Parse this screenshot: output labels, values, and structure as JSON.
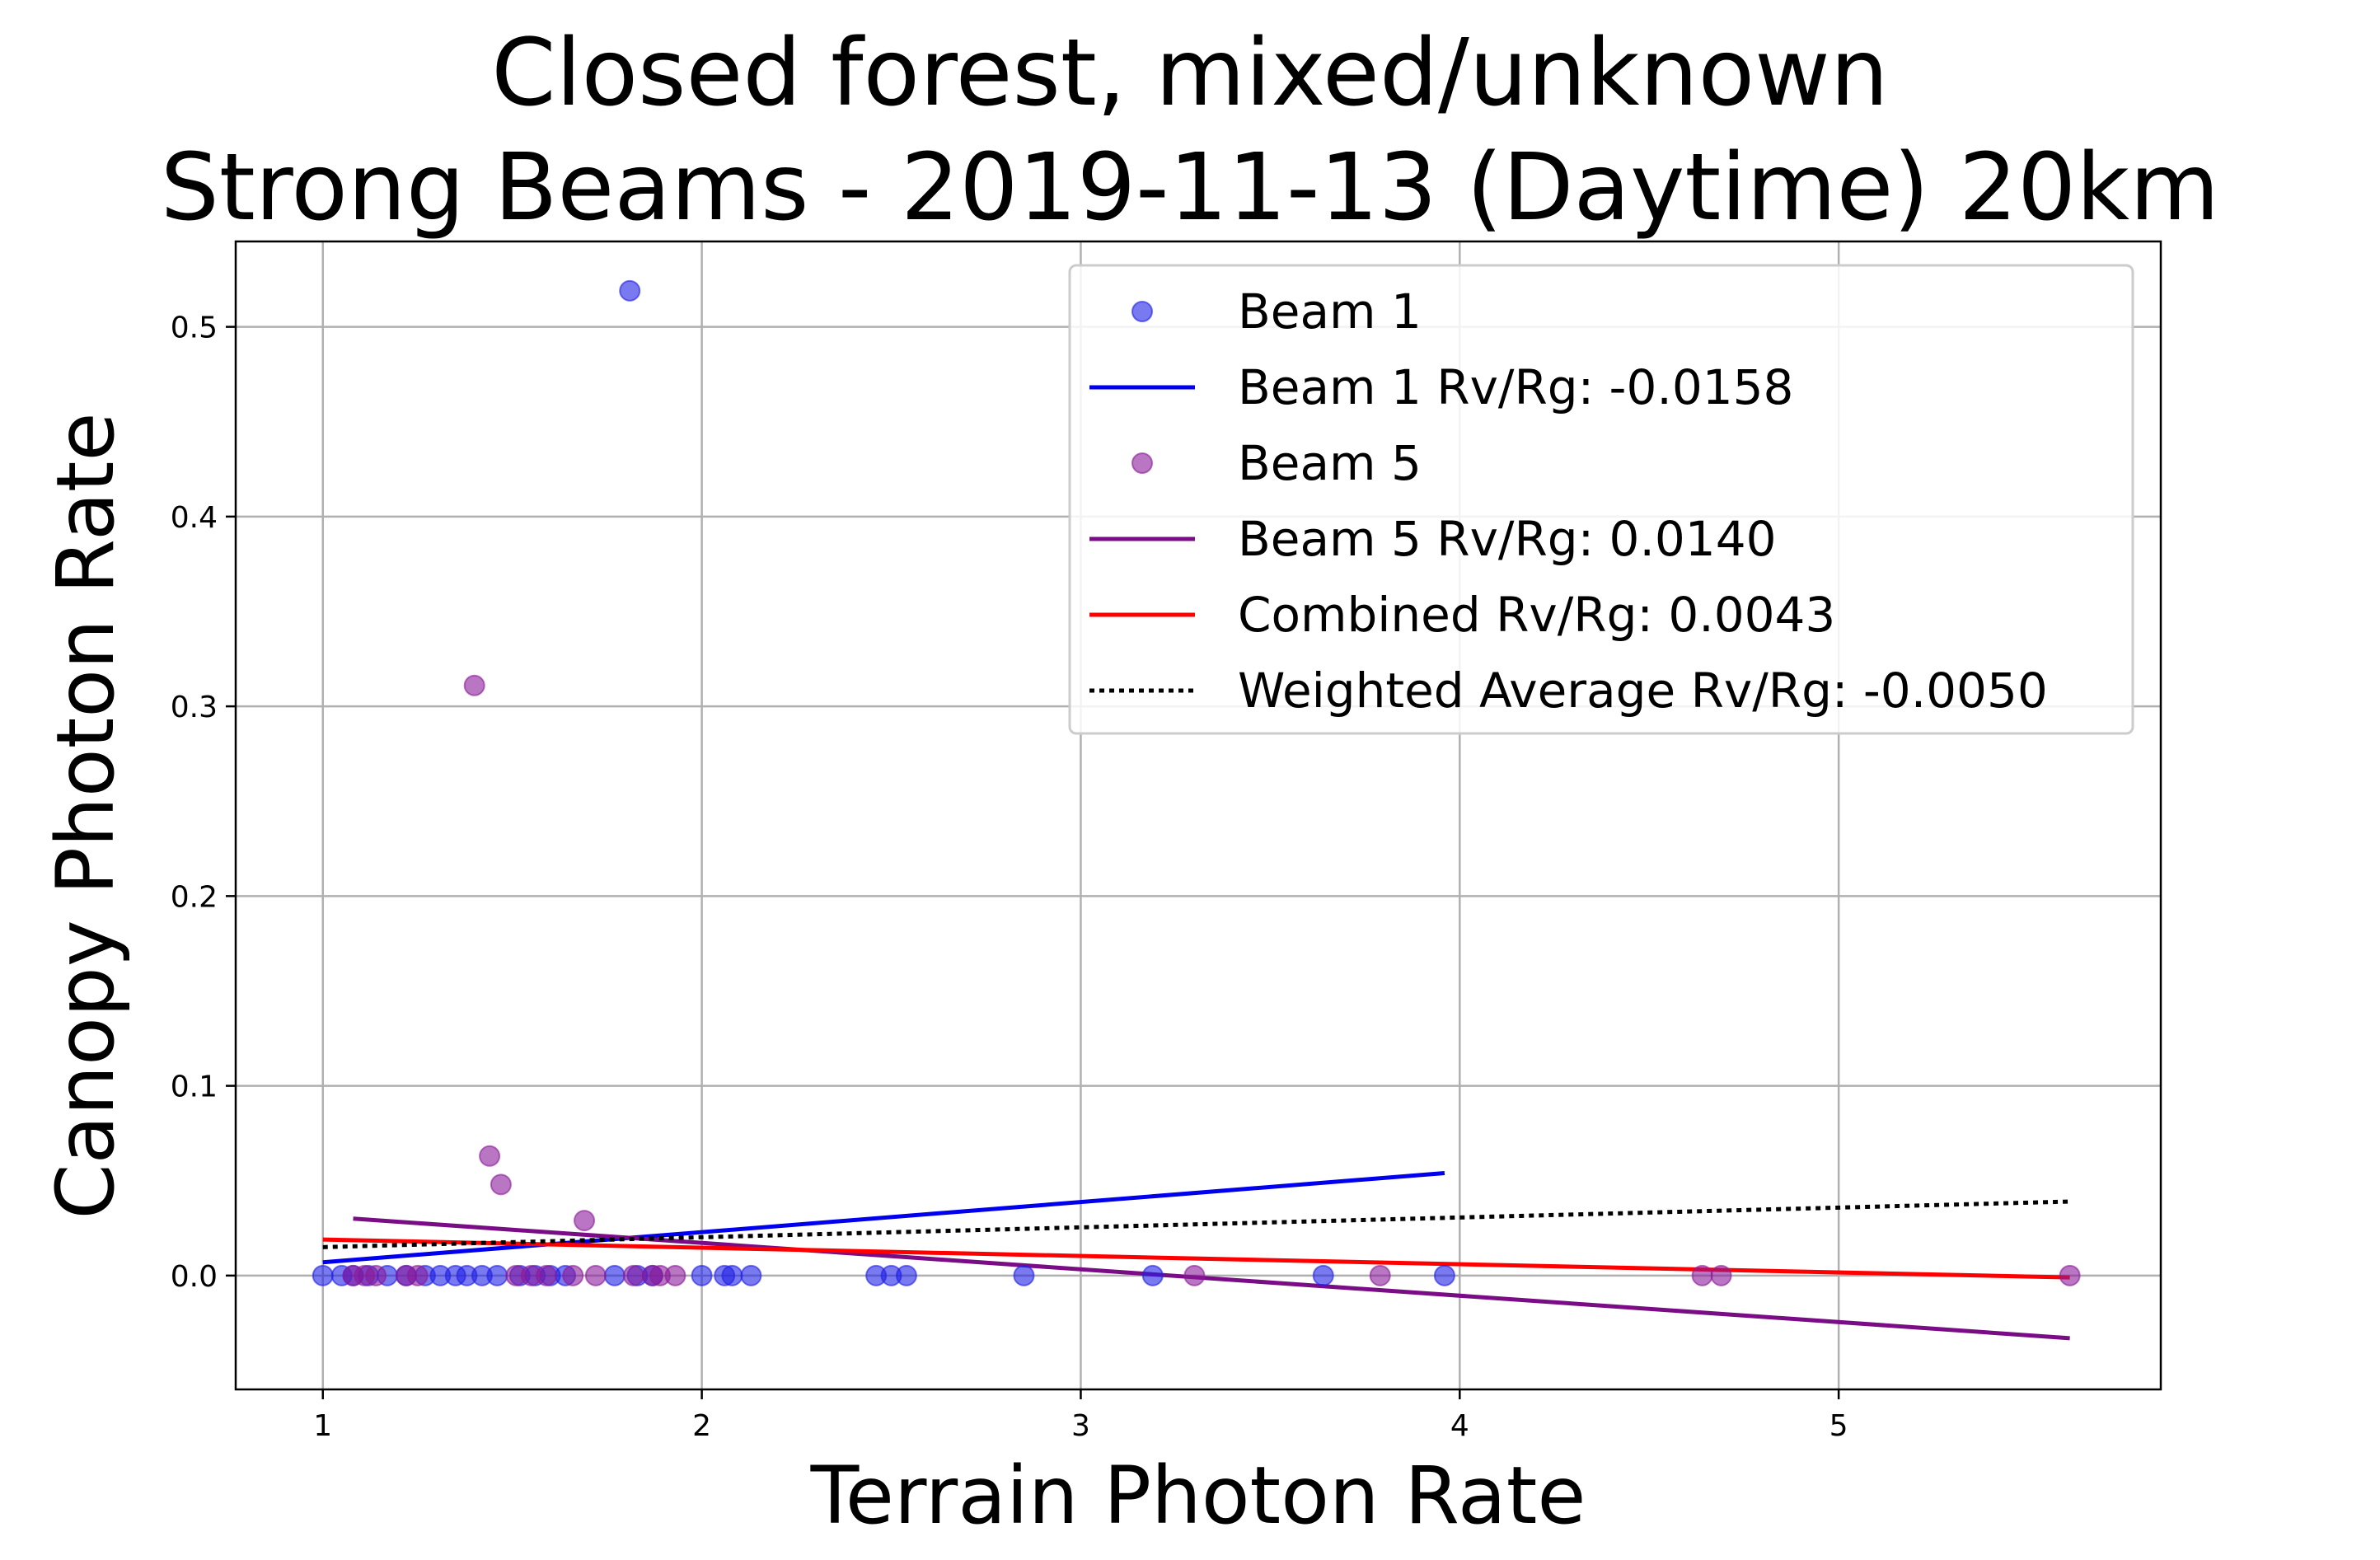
{
  "chart_data": {
    "type": "scatter",
    "title_lines": [
      "Closed forest, mixed/unknown",
      "Strong Beams - 2019-11-13 (Daytime) 20km"
    ],
    "xlabel": "Terrain Photon Rate",
    "ylabel": "Canopy Photon Rate",
    "xlim": [
      0.77,
      5.85
    ],
    "ylim": [
      -0.06,
      0.545
    ],
    "x_ticks": [
      1,
      2,
      3,
      4,
      5
    ],
    "x_tick_labels": [
      "1",
      "2",
      "3",
      "4",
      "5"
    ],
    "y_ticks": [
      0.0,
      0.1,
      0.2,
      0.3,
      0.4,
      0.5
    ],
    "y_tick_labels": [
      "0.0",
      "0.1",
      "0.2",
      "0.3",
      "0.4",
      "0.5"
    ],
    "grid": true,
    "legend_position": "top-right",
    "series": [
      {
        "name": "Beam 1",
        "kind": "scatter",
        "color": "#1f1fe6",
        "points": [
          [
            1.0,
            0.0
          ],
          [
            1.05,
            0.0
          ],
          [
            1.08,
            0.0
          ],
          [
            1.12,
            0.0
          ],
          [
            1.17,
            0.0
          ],
          [
            1.22,
            0.0
          ],
          [
            1.27,
            0.0
          ],
          [
            1.31,
            0.0
          ],
          [
            1.35,
            0.0
          ],
          [
            1.38,
            0.0
          ],
          [
            1.42,
            0.0
          ],
          [
            1.46,
            0.0
          ],
          [
            1.52,
            0.0
          ],
          [
            1.56,
            0.0
          ],
          [
            1.6,
            0.0
          ],
          [
            1.64,
            0.0
          ],
          [
            1.77,
            0.0
          ],
          [
            1.81,
            0.519
          ],
          [
            1.83,
            0.0
          ],
          [
            1.87,
            0.0
          ],
          [
            2.0,
            0.0
          ],
          [
            2.06,
            0.0
          ],
          [
            2.08,
            0.0
          ],
          [
            2.13,
            0.0
          ],
          [
            2.46,
            0.0
          ],
          [
            2.5,
            0.0
          ],
          [
            2.54,
            0.0
          ],
          [
            2.85,
            0.0
          ],
          [
            3.19,
            0.0
          ],
          [
            3.64,
            0.0
          ],
          [
            3.96,
            0.0
          ]
        ]
      },
      {
        "name": "Beam 1 Rv/Rg: -0.0158",
        "kind": "line",
        "color": "#0000ee",
        "dash": "solid",
        "points": [
          [
            1.0,
            0.007
          ],
          [
            3.96,
            0.054
          ]
        ]
      },
      {
        "name": "Beam 5",
        "kind": "scatter",
        "color": "#8b1a9a",
        "points": [
          [
            1.08,
            0.0
          ],
          [
            1.11,
            0.0
          ],
          [
            1.14,
            0.0
          ],
          [
            1.22,
            0.0
          ],
          [
            1.25,
            0.0
          ],
          [
            1.4,
            0.311
          ],
          [
            1.44,
            0.063
          ],
          [
            1.47,
            0.048
          ],
          [
            1.51,
            0.0
          ],
          [
            1.55,
            0.0
          ],
          [
            1.59,
            0.0
          ],
          [
            1.66,
            0.0
          ],
          [
            1.69,
            0.029
          ],
          [
            1.72,
            0.0
          ],
          [
            1.82,
            0.0
          ],
          [
            1.87,
            0.0
          ],
          [
            1.89,
            0.0
          ],
          [
            1.93,
            0.0
          ],
          [
            3.3,
            0.0
          ],
          [
            3.79,
            0.0
          ],
          [
            4.64,
            0.0
          ],
          [
            4.69,
            0.0
          ],
          [
            5.61,
            0.0
          ]
        ]
      },
      {
        "name": "Beam 5 Rv/Rg: 0.0140",
        "kind": "line",
        "color": "#7a0c86",
        "dash": "solid",
        "points": [
          [
            1.08,
            0.03
          ],
          [
            5.61,
            -0.033
          ]
        ]
      },
      {
        "name": "Combined Rv/Rg: 0.0043",
        "kind": "line",
        "color": "#ff0000",
        "dash": "solid",
        "points": [
          [
            1.0,
            0.019
          ],
          [
            5.61,
            -0.001
          ]
        ]
      },
      {
        "name": "Weighted Average Rv/Rg: -0.0050",
        "kind": "line",
        "color": "#000000",
        "dash": "dotted",
        "points": [
          [
            1.0,
            0.015
          ],
          [
            5.61,
            0.039
          ]
        ]
      }
    ]
  }
}
